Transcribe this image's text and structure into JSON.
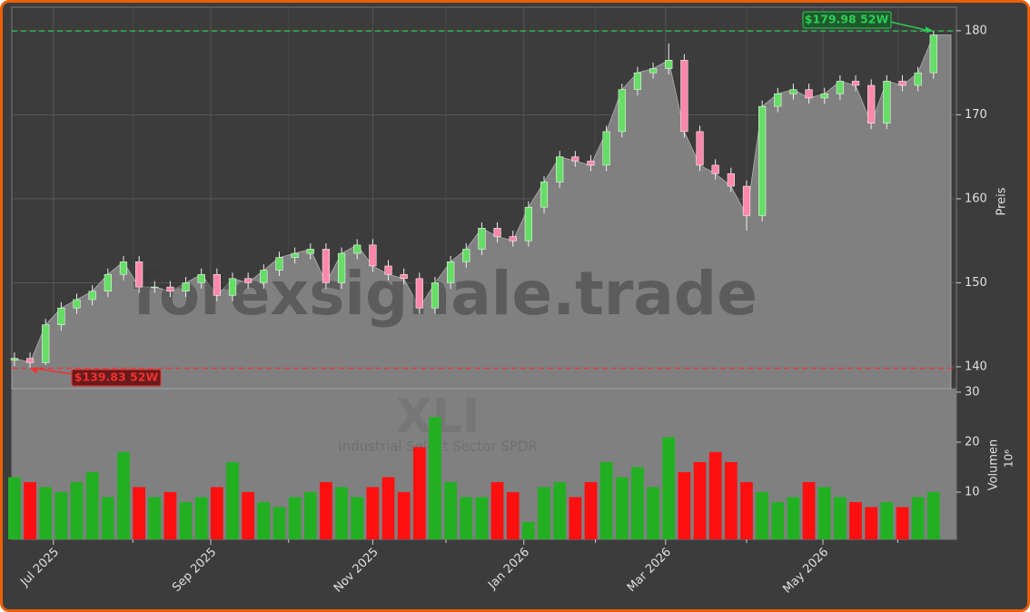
{
  "chart_data": {
    "type": "candlestick",
    "watermark": "forexsignale.trade",
    "symbol": "XLI",
    "subtitle": "Industrial Select Sector SPDR",
    "ylabel": "Preis",
    "y2label": "Volumen",
    "y2unit": "10⁶",
    "categories": [
      null,
      null,
      null,
      null,
      null,
      null,
      null,
      null,
      null,
      null,
      null,
      null,
      null,
      null,
      null,
      null,
      null,
      null,
      null,
      null,
      null,
      null,
      null,
      null,
      null,
      null,
      null,
      null,
      null,
      null,
      null,
      null,
      null,
      null,
      null,
      null,
      null,
      null,
      null,
      null,
      null,
      null,
      null,
      null,
      null,
      null,
      null,
      null,
      null,
      null,
      null,
      null,
      null,
      null,
      null,
      null,
      null,
      null,
      null,
      null
    ],
    "open": [
      140.8,
      141,
      140.5,
      145,
      147,
      148,
      149,
      151,
      152.5,
      149.5,
      149.5,
      149,
      150,
      151,
      148.5,
      150.5,
      150,
      151.5,
      153,
      153.5,
      154,
      150,
      153.5,
      154.5,
      152,
      151,
      150.5,
      147,
      150,
      152.5,
      154,
      156.5,
      155.5,
      155,
      159,
      162,
      165,
      164.5,
      164,
      168,
      173,
      175,
      175.5,
      176.5,
      168,
      164,
      163,
      161.5,
      158,
      171,
      172.5,
      173,
      172,
      172.5,
      174,
      173.5,
      169,
      174,
      173.5,
      175
    ],
    "high": [
      141.7,
      141.7,
      145.7,
      147.7,
      148.7,
      149.7,
      151.7,
      153.2,
      153.2,
      150.2,
      150.2,
      150.7,
      151.7,
      151.7,
      151.2,
      151.2,
      152.2,
      153.7,
      154.2,
      154.7,
      154.7,
      154.2,
      155.2,
      155.2,
      152.7,
      151.7,
      151.2,
      150.7,
      153.2,
      154.7,
      157.2,
      157.2,
      156.2,
      159.7,
      162.7,
      165.7,
      165.7,
      165.2,
      168.7,
      173.7,
      175.7,
      176.2,
      178.5,
      177.2,
      168.7,
      164.7,
      163.7,
      162.2,
      171.7,
      173.2,
      173.7,
      173.7,
      173.2,
      174.7,
      174.7,
      174.2,
      174.7,
      174.7,
      175.7,
      179.98
    ],
    "low": [
      140.1,
      139.83,
      140.2,
      144.3,
      146.3,
      147.3,
      148.3,
      150.3,
      148.8,
      148.8,
      148.3,
      148.3,
      149.3,
      147.8,
      147.8,
      149.3,
      149.3,
      150.8,
      152.3,
      152.8,
      149.3,
      149.3,
      152.8,
      151.3,
      150.3,
      149.8,
      146.3,
      146.3,
      149.3,
      151.8,
      153.3,
      154.8,
      154.3,
      154.3,
      158.3,
      161.3,
      163.8,
      163.3,
      163.3,
      167.3,
      172.3,
      174.3,
      174.8,
      167.3,
      163.3,
      162.3,
      160.8,
      156.2,
      157.3,
      170.3,
      171.8,
      171.3,
      171.3,
      171.8,
      172.8,
      168.3,
      168.3,
      172.8,
      172.8,
      174.3
    ],
    "close": [
      141,
      140.5,
      145,
      147,
      148,
      149,
      151,
      152.5,
      149.5,
      149.5,
      149,
      150,
      151,
      148.5,
      150.5,
      150,
      151.5,
      153,
      153.5,
      154,
      150,
      153.5,
      154.5,
      152,
      151,
      150.5,
      147,
      150,
      152.5,
      154,
      156.5,
      155.5,
      155,
      159,
      162,
      165,
      164.5,
      164,
      168,
      173,
      175,
      175.5,
      176.5,
      168,
      164,
      163,
      161.5,
      158,
      171,
      172.5,
      173,
      172,
      172.5,
      174,
      173.5,
      169,
      174,
      173.5,
      175,
      179.5
    ],
    "volume": [
      13,
      12,
      11,
      10,
      12,
      14,
      9,
      18,
      11,
      9,
      10,
      8,
      9,
      11,
      16,
      10,
      8,
      7,
      9,
      10,
      12,
      11,
      9,
      11,
      13,
      10,
      19,
      25,
      12,
      9,
      9,
      12,
      10,
      4,
      11,
      12,
      9,
      12,
      16,
      13,
      15,
      11,
      21,
      14,
      16,
      18,
      16,
      12,
      10,
      8,
      9,
      12,
      11,
      9,
      8,
      7,
      8,
      7,
      9,
      10
    ],
    "up_color": "#22b022",
    "down_color": "#ff1010",
    "candle_up_color": "#66dd66",
    "candle_down_color": "#ff88aa",
    "area_color": "#808080",
    "xlim": [
      -0.17,
      60.47
    ],
    "xticks": [
      {
        "value": 2.5,
        "label": "Jul 2025"
      },
      {
        "value": 12.6,
        "label": "Sep 2025"
      },
      {
        "value": 23.0,
        "label": "Nov 2025"
      },
      {
        "value": 32.7,
        "label": "Jan 2026"
      },
      {
        "value": 41.8,
        "label": "Mar 2026"
      },
      {
        "value": 51.9,
        "label": "May 2026"
      }
    ],
    "xminorticks": [
      7.6,
      17.6,
      27.7,
      37.3,
      47.0,
      56.7
    ],
    "ylim": [
      137.4,
      182.8
    ],
    "yticks": [
      140,
      150,
      160,
      170,
      180
    ],
    "y2lim": [
      0.55,
      30.7
    ],
    "y2ticks": [
      10,
      20,
      30
    ],
    "grid": true,
    "high_mark": {
      "value": 179.98,
      "label": "$179.98 52W",
      "color": "#2ecc55"
    },
    "low_mark": {
      "value": 139.83,
      "label": "$139.83 52W",
      "color": "#ee3333"
    }
  }
}
